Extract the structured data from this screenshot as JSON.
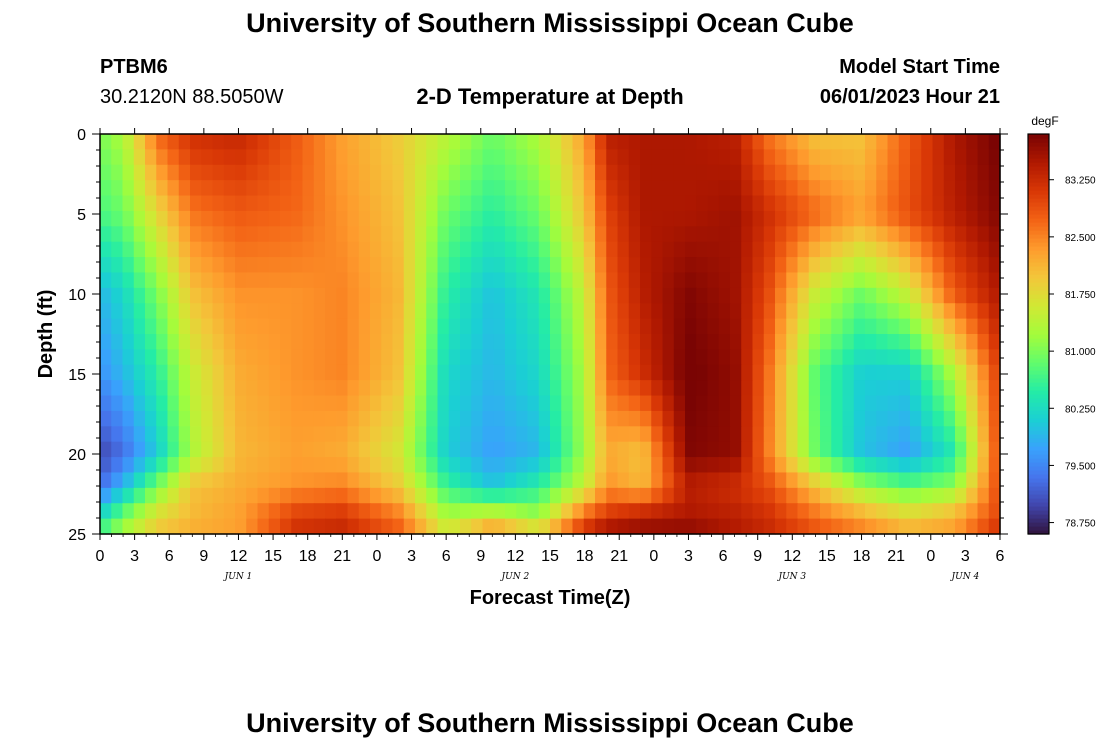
{
  "title": "University of Southern Mississippi Ocean Cube",
  "footer_title": "University of Southern Mississippi Ocean Cube",
  "station": {
    "id": "PTBM6",
    "coords": "30.2120N  88.5050W"
  },
  "model": {
    "label": "Model Start Time",
    "start": "06/01/2023 Hour 21"
  },
  "chart_data": {
    "type": "heatmap",
    "title": "2-D Temperature at Depth",
    "xlabel": "Forecast Time(Z)",
    "ylabel": "Depth (ft)",
    "colorbar_unit": "degF",
    "x_hours_range": [
      0,
      78
    ],
    "y_range_ft": [
      0,
      25
    ],
    "y_inverted": true,
    "x_tick_labels": [
      "0",
      "3",
      "6",
      "9",
      "12",
      "15",
      "18",
      "21",
      "0",
      "3",
      "6",
      "9",
      "12",
      "15",
      "18",
      "21",
      "0",
      "3",
      "6",
      "9",
      "12",
      "15",
      "18",
      "21",
      "0",
      "3",
      "6"
    ],
    "y_tick_labels": [
      "0",
      "5",
      "10",
      "15",
      "20",
      "25"
    ],
    "y_tick_values": [
      0,
      5,
      10,
      15,
      20,
      25
    ],
    "date_labels": [
      {
        "label": "JUN 1",
        "hour": 12
      },
      {
        "label": "JUN 2",
        "hour": 36
      },
      {
        "label": "JUN 3",
        "hour": 60
      },
      {
        "label": "JUN 4",
        "hour": 75
      }
    ],
    "colorbar_ticks": [
      "83.250",
      "82.500",
      "81.750",
      "81.000",
      "80.250",
      "79.500",
      "78.750"
    ],
    "colorbar_tick_values": [
      83.25,
      82.5,
      81.75,
      81.0,
      80.25,
      79.5,
      78.75
    ],
    "value_range": [
      78.6,
      83.85
    ],
    "palette": [
      "#30123b",
      "#4145ab",
      "#4675ed",
      "#39a2fc",
      "#1bcfd4",
      "#24eca6",
      "#61fc6c",
      "#a4fc3b",
      "#d1e834",
      "#f3c63a",
      "#fe9b2d",
      "#f36315",
      "#d93806",
      "#b11901",
      "#7a0403"
    ],
    "grid_columns": 80,
    "grid_rows": 26,
    "field_keyframes_hours": [
      0,
      2,
      5,
      8,
      12,
      17,
      21,
      26,
      30,
      34,
      38,
      42,
      44,
      47,
      51,
      55,
      58,
      62,
      66,
      70,
      74,
      78
    ],
    "field_keyframes_depths": [
      0,
      5,
      10,
      15,
      20,
      22,
      24,
      25
    ],
    "field_values_degF": [
      [
        81.0,
        81.3,
        82.7,
        83.2,
        83.3,
        82.8,
        82.3,
        81.9,
        81.4,
        80.9,
        81.3,
        82.3,
        83.4,
        83.5,
        83.5,
        83.4,
        82.6,
        82.0,
        82.0,
        82.8,
        83.5,
        83.9
      ],
      [
        80.7,
        80.9,
        81.8,
        82.6,
        82.8,
        82.7,
        82.4,
        82.0,
        80.9,
        80.5,
        80.9,
        82.0,
        83.0,
        83.5,
        83.5,
        83.6,
        83.2,
        82.7,
        82.3,
        82.9,
        83.4,
        83.8
      ],
      [
        79.9,
        80.2,
        81.0,
        82.0,
        82.4,
        82.4,
        82.5,
        82.1,
        80.5,
        80.0,
        80.4,
        81.5,
        82.8,
        83.4,
        83.8,
        83.6,
        82.9,
        81.5,
        80.9,
        81.5,
        82.8,
        83.5
      ],
      [
        79.6,
        79.9,
        80.5,
        81.5,
        82.2,
        82.4,
        82.5,
        82.0,
        80.2,
        79.9,
        80.2,
        81.3,
        82.7,
        83.2,
        83.9,
        83.7,
        82.6,
        80.8,
        80.1,
        80.1,
        81.3,
        83.1
      ],
      [
        79.0,
        79.3,
        80.1,
        81.3,
        82.1,
        82.3,
        82.2,
        81.6,
        80.1,
        79.7,
        79.9,
        81.2,
        82.2,
        82.0,
        83.8,
        83.7,
        82.5,
        80.9,
        80.0,
        79.7,
        80.4,
        83.0
      ],
      [
        79.3,
        79.9,
        81.0,
        82.0,
        82.2,
        82.4,
        82.5,
        81.9,
        80.6,
        80.0,
        80.5,
        81.5,
        82.4,
        82.1,
        83.4,
        83.2,
        82.9,
        82.0,
        81.2,
        80.8,
        81.1,
        83.0
      ],
      [
        80.3,
        81.0,
        81.8,
        82.1,
        82.3,
        83.1,
        83.2,
        82.6,
        81.3,
        81.7,
        81.2,
        82.8,
        83.2,
        83.5,
        83.5,
        83.4,
        83.2,
        82.7,
        82.3,
        81.9,
        82.2,
        83.0
      ],
      [
        80.8,
        81.3,
        82.0,
        82.2,
        82.3,
        83.2,
        83.3,
        82.8,
        81.7,
        82.6,
        82.0,
        83.3,
        83.7,
        83.7,
        83.8,
        83.5,
        83.3,
        82.9,
        82.6,
        82.2,
        82.3,
        83.3
      ]
    ]
  }
}
